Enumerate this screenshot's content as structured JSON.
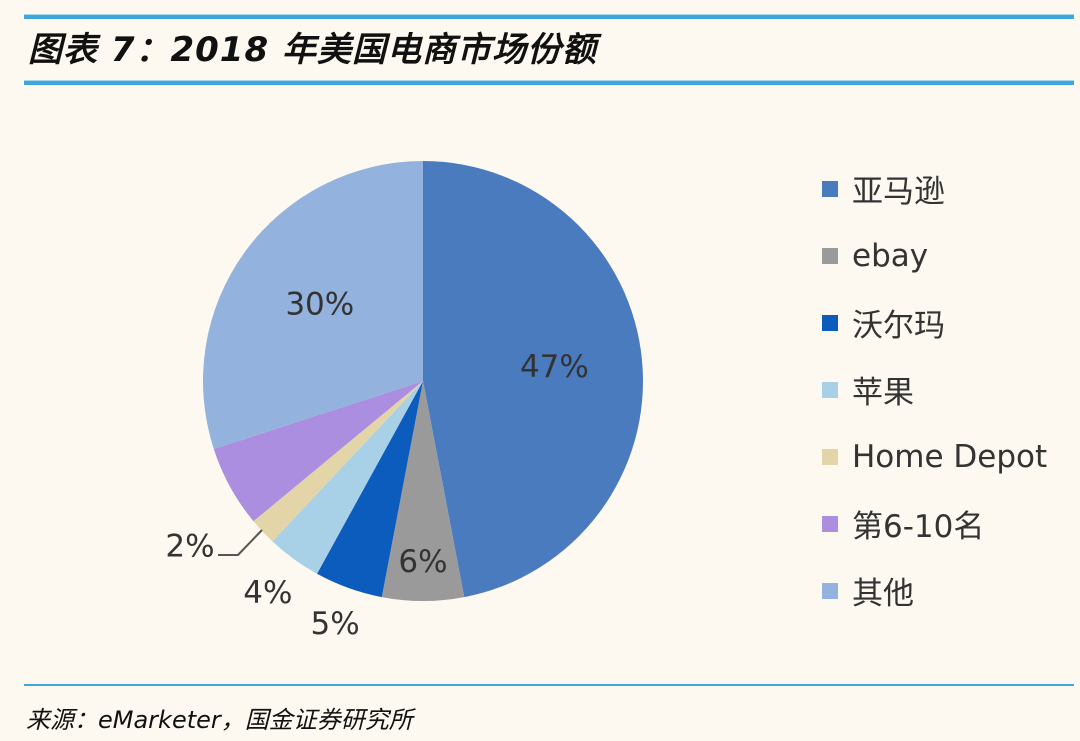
{
  "title": "图表 7：2018 年美国电商市场份额",
  "source": "来源：eMarketer，国金证券研究所",
  "chart_data": {
    "type": "pie",
    "title": "2018 年美国电商市场份额",
    "categories": [
      "亚马逊",
      "ebay",
      "沃尔玛",
      "苹果",
      "Home Depot",
      "第6-10名",
      "其他"
    ],
    "values": [
      47,
      6,
      5,
      4,
      2,
      6,
      30
    ],
    "data_labels": [
      "47%",
      "6%",
      "5%",
      "4%",
      "2%",
      "",
      "30%"
    ],
    "colors": [
      "#4a7bbf",
      "#9a9a9a",
      "#0b5cbd",
      "#a8d0e6",
      "#e4d5a9",
      "#ab8ee0",
      "#93b2de"
    ],
    "start": "12 o'clock, clockwise",
    "legend": "right"
  }
}
